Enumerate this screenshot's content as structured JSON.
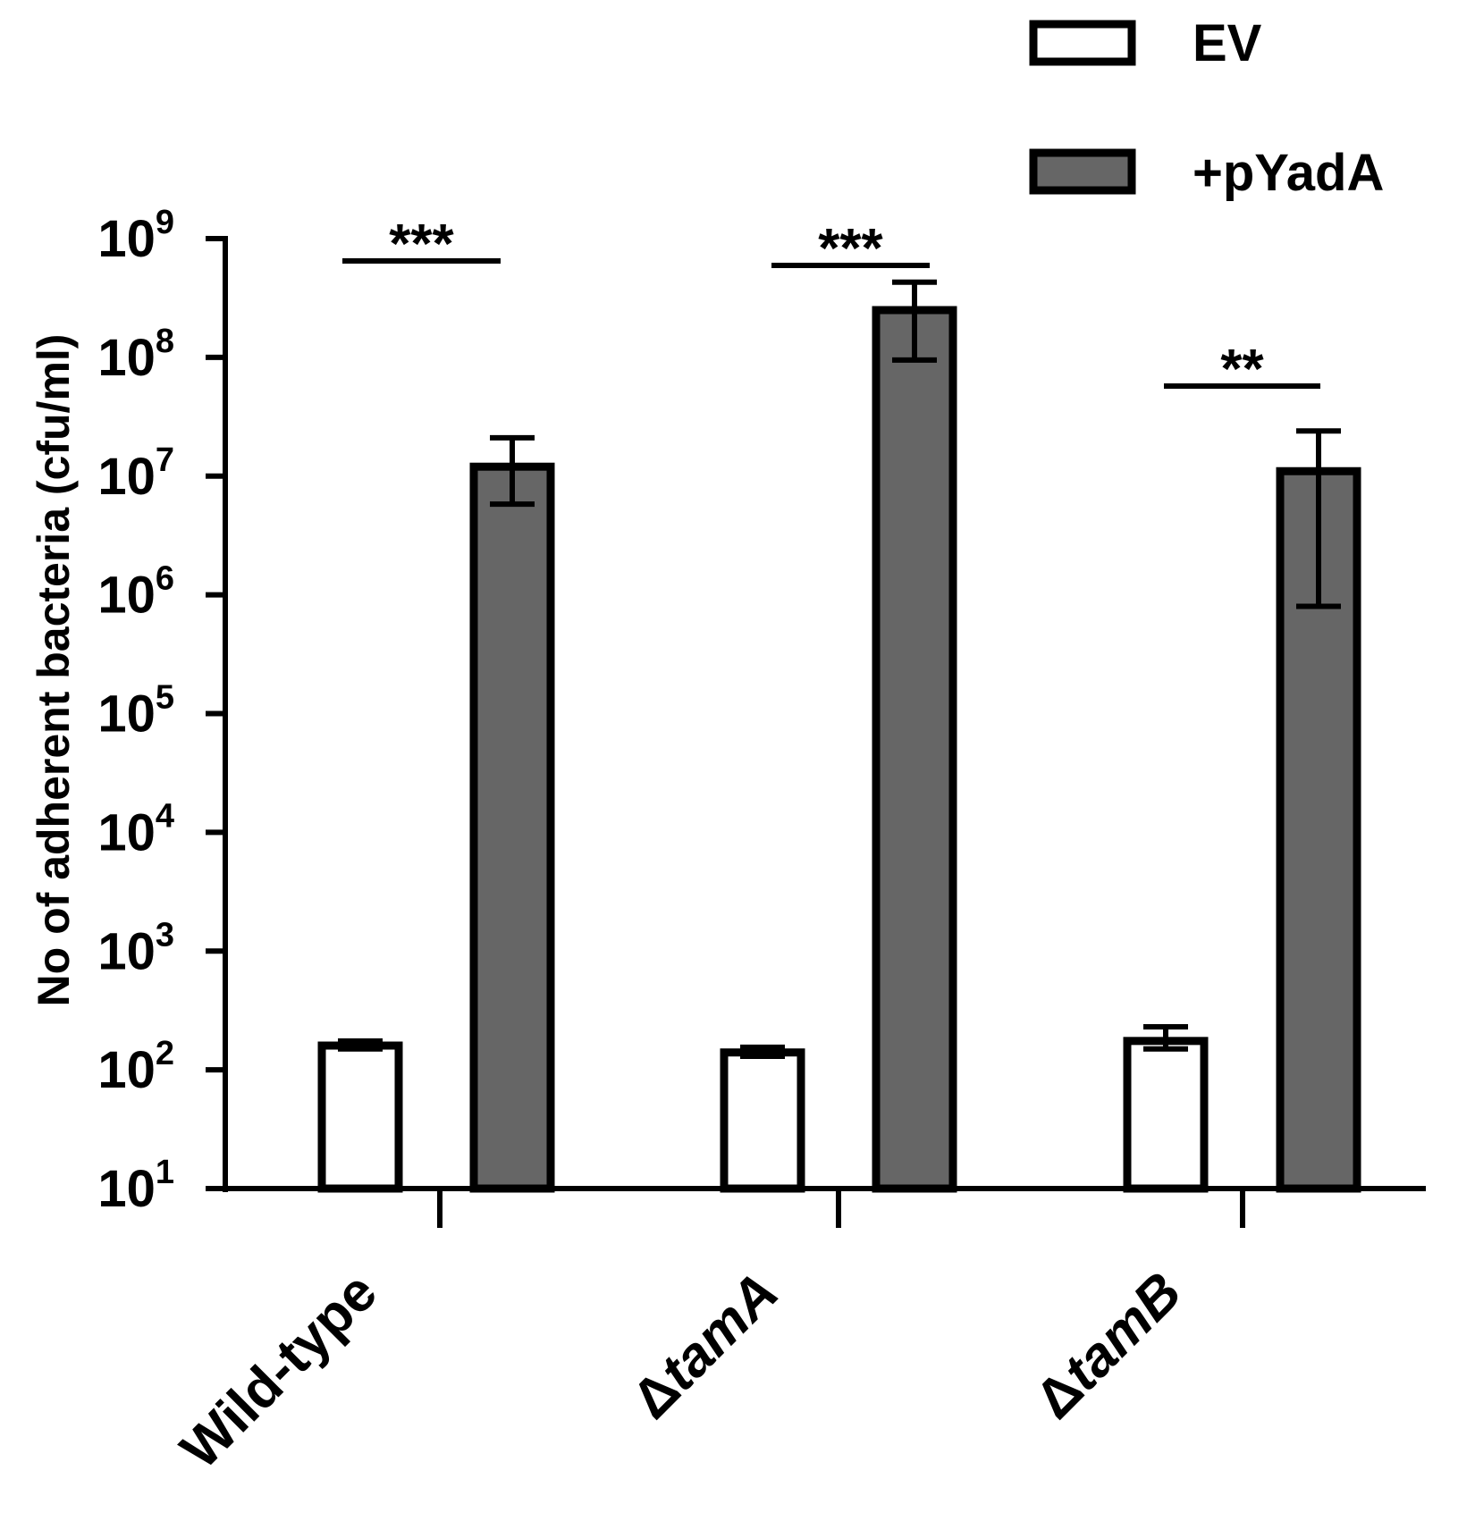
{
  "chart_data": {
    "type": "bar",
    "ylabel": "No of adherent bacteria (cfu/ml)",
    "xlabel": "",
    "yscale": "log",
    "ylim": [
      10,
      1000000000
    ],
    "yticks": [
      {
        "value": 10,
        "base": "10",
        "exp": "1"
      },
      {
        "value": 100,
        "base": "10",
        "exp": "2"
      },
      {
        "value": 1000,
        "base": "10",
        "exp": "3"
      },
      {
        "value": 10000,
        "base": "10",
        "exp": "4"
      },
      {
        "value": 100000,
        "base": "10",
        "exp": "5"
      },
      {
        "value": 1000000,
        "base": "10",
        "exp": "6"
      },
      {
        "value": 10000000,
        "base": "10",
        "exp": "7"
      },
      {
        "value": 100000000,
        "base": "10",
        "exp": "8"
      },
      {
        "value": 1000000000,
        "base": "10",
        "exp": "9"
      }
    ],
    "categories": [
      {
        "prefix": "",
        "name": "Wild-type",
        "italic": false
      },
      {
        "prefix": "Δ",
        "name": "tamA",
        "italic": true
      },
      {
        "prefix": "Δ",
        "name": "tamB",
        "italic": true
      }
    ],
    "series": [
      {
        "name": "EV",
        "color": "#ffffff",
        "values": [
          160,
          140,
          175
        ],
        "err_low": [
          150,
          130,
          150
        ],
        "err_high": [
          175,
          155,
          230
        ]
      },
      {
        "name": "+pYadA",
        "color": "#666666",
        "values": [
          12000000,
          250000000,
          11000000
        ],
        "err_low": [
          5800000,
          95000000,
          800000
        ],
        "err_high": [
          21000000,
          430000000,
          24000000
        ]
      }
    ],
    "significance": [
      "***",
      "***",
      "**"
    ],
    "legend_position": "top-right",
    "grid": false
  }
}
